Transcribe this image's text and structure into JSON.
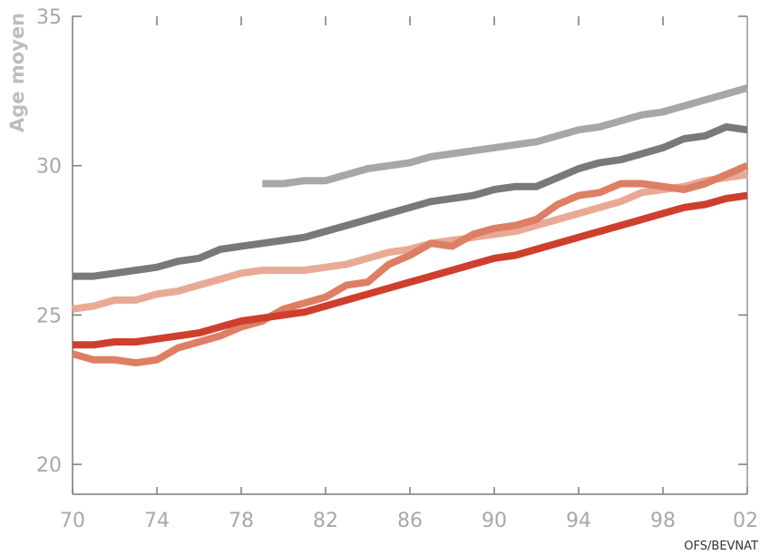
{
  "chart_data": {
    "type": "line",
    "title": "",
    "ylabel": "Age moyen",
    "xlabel": "",
    "source": "OFS/BEVNAT",
    "xlim": [
      1970,
      2002
    ],
    "ylim": [
      19,
      35
    ],
    "x_ticks": [
      {
        "value": 1970,
        "label": "70"
      },
      {
        "value": 1974,
        "label": "74"
      },
      {
        "value": 1978,
        "label": "78"
      },
      {
        "value": 1982,
        "label": "82"
      },
      {
        "value": 1986,
        "label": "86"
      },
      {
        "value": 1990,
        "label": "90"
      },
      {
        "value": 1994,
        "label": "94"
      },
      {
        "value": 1998,
        "label": "98"
      },
      {
        "value": 2002,
        "label": "02"
      }
    ],
    "y_ticks": [
      {
        "value": 20,
        "label": "20"
      },
      {
        "value": 25,
        "label": "25"
      },
      {
        "value": 30,
        "label": "30"
      },
      {
        "value": 35,
        "label": "35"
      }
    ],
    "grid": false,
    "legend": "none",
    "series": [
      {
        "color": "#a7a7a9",
        "x": [
          1979,
          1980,
          1981,
          1982,
          1983,
          1984,
          1985,
          1986,
          1987,
          1988,
          1989,
          1990,
          1991,
          1992,
          1993,
          1994,
          1995,
          1996,
          1997,
          1998,
          1999,
          2000,
          2001,
          2002
        ],
        "y": [
          29.4,
          29.4,
          29.5,
          29.5,
          29.7,
          29.9,
          30.0,
          30.1,
          30.3,
          30.4,
          30.5,
          30.6,
          30.7,
          30.8,
          31.0,
          31.2,
          31.3,
          31.5,
          31.7,
          31.8,
          32.0,
          32.2,
          32.4,
          32.6
        ]
      },
      {
        "color": "#777a7c",
        "x": [
          1970,
          1971,
          1972,
          1973,
          1974,
          1975,
          1976,
          1977,
          1978,
          1979,
          1980,
          1981,
          1982,
          1983,
          1984,
          1985,
          1986,
          1987,
          1988,
          1989,
          1990,
          1991,
          1992,
          1993,
          1994,
          1995,
          1996,
          1997,
          1998,
          1999,
          2000,
          2001,
          2002
        ],
        "y": [
          26.3,
          26.3,
          26.4,
          26.5,
          26.6,
          26.8,
          26.9,
          27.2,
          27.3,
          27.4,
          27.5,
          27.6,
          27.8,
          28.0,
          28.2,
          28.4,
          28.6,
          28.8,
          28.9,
          29.0,
          29.2,
          29.3,
          29.3,
          29.6,
          29.9,
          30.1,
          30.2,
          30.4,
          30.6,
          30.9,
          31.0,
          31.3,
          31.2
        ]
      },
      {
        "color": "#e9aa95",
        "x": [
          1970,
          1971,
          1972,
          1973,
          1974,
          1975,
          1976,
          1977,
          1978,
          1979,
          1980,
          1981,
          1982,
          1983,
          1984,
          1985,
          1986,
          1987,
          1988,
          1989,
          1990,
          1991,
          1992,
          1993,
          1994,
          1995,
          1996,
          1997,
          1998,
          1999,
          2000,
          2001,
          2002
        ],
        "y": [
          25.2,
          25.3,
          25.5,
          25.5,
          25.7,
          25.8,
          26.0,
          26.2,
          26.4,
          26.5,
          26.5,
          26.5,
          26.6,
          26.7,
          26.9,
          27.1,
          27.2,
          27.4,
          27.5,
          27.6,
          27.7,
          27.8,
          28.0,
          28.2,
          28.4,
          28.6,
          28.8,
          29.1,
          29.2,
          29.3,
          29.5,
          29.6,
          29.7
        ]
      },
      {
        "color": "#dd7f64",
        "x": [
          1970,
          1971,
          1972,
          1973,
          1974,
          1975,
          1976,
          1977,
          1978,
          1979,
          1980,
          1981,
          1982,
          1983,
          1984,
          1985,
          1986,
          1987,
          1988,
          1989,
          1990,
          1991,
          1992,
          1993,
          1994,
          1995,
          1996,
          1997,
          1998,
          1999,
          2000,
          2001,
          2002
        ],
        "y": [
          23.7,
          23.5,
          23.5,
          23.4,
          23.5,
          23.9,
          24.1,
          24.3,
          24.6,
          24.8,
          25.2,
          25.4,
          25.6,
          26.0,
          26.1,
          26.7,
          27.0,
          27.4,
          27.3,
          27.7,
          27.9,
          28.0,
          28.2,
          28.7,
          29.0,
          29.1,
          29.4,
          29.4,
          29.3,
          29.2,
          29.4,
          29.7,
          30.0
        ]
      },
      {
        "color": "#cf3f2e",
        "x": [
          1970,
          1971,
          1972,
          1973,
          1974,
          1975,
          1976,
          1977,
          1978,
          1979,
          1980,
          1981,
          1982,
          1983,
          1984,
          1985,
          1986,
          1987,
          1988,
          1989,
          1990,
          1991,
          1992,
          1993,
          1994,
          1995,
          1996,
          1997,
          1998,
          1999,
          2000,
          2001,
          2002
        ],
        "y": [
          24.0,
          24.0,
          24.1,
          24.1,
          24.2,
          24.3,
          24.4,
          24.6,
          24.8,
          24.9,
          25.0,
          25.1,
          25.3,
          25.5,
          25.7,
          25.9,
          26.1,
          26.3,
          26.5,
          26.7,
          26.9,
          27.0,
          27.2,
          27.4,
          27.6,
          27.8,
          28.0,
          28.2,
          28.4,
          28.6,
          28.7,
          28.9,
          29.0
        ]
      }
    ]
  }
}
